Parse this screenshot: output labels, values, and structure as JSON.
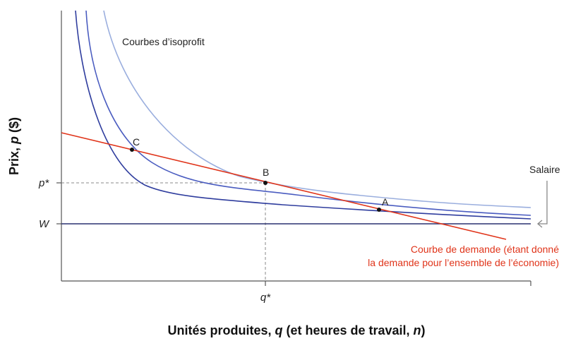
{
  "y_axis_title": {
    "prefix": "Prix, ",
    "symbol": "p",
    "suffix": " ($)"
  },
  "x_axis_title": {
    "prefix": "Unités produites, ",
    "symbol": "q",
    "middle": " (et heures de travail, ",
    "symbol2": "n",
    "suffix": ")"
  },
  "y_ticks": {
    "p_star": "p*",
    "w": "W"
  },
  "x_ticks": {
    "q_star": "q*"
  },
  "isoprofit_label": "Courbes d’isoprofit",
  "wage_label": "Salaire",
  "demand_label": {
    "line1": "Courbe de demande (étant donné",
    "line2": "la demande pour l’ensemble de l’économie)"
  },
  "points": [
    {
      "name": "C",
      "label": "C"
    },
    {
      "name": "B",
      "label": "B"
    },
    {
      "name": "A",
      "label": "A"
    }
  ],
  "colors": {
    "demand": "#e0341a",
    "isoprofit_dark": "#2f3d9e",
    "isoprofit_mid": "#4a5cc0",
    "isoprofit_light": "#9aaede",
    "wage_line": "#2a3270",
    "axis": "#555555",
    "guide": "#888888"
  }
}
